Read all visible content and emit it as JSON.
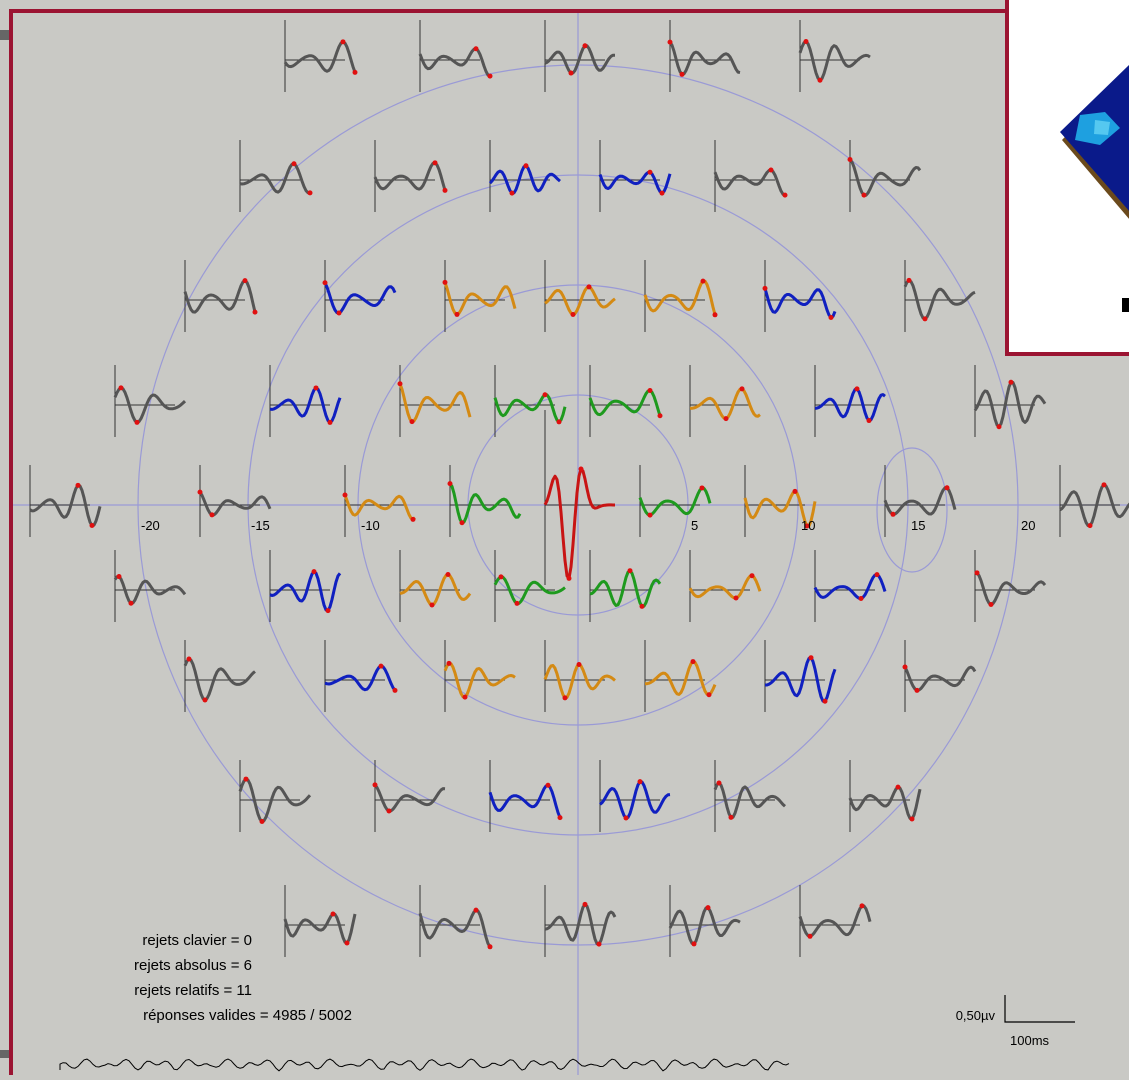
{
  "plot": {
    "axis_labels": [
      "-20",
      "-15",
      "-10",
      "5",
      "10",
      "15",
      "20"
    ]
  },
  "stats": {
    "lines": [
      "rejets clavier = 0",
      "rejets absolus = 6",
      "rejets relatifs = 11",
      "réponses valides = 4985 / 5002"
    ]
  },
  "scale": {
    "amplitude": "0,50µv",
    "time": "100ms"
  }
}
